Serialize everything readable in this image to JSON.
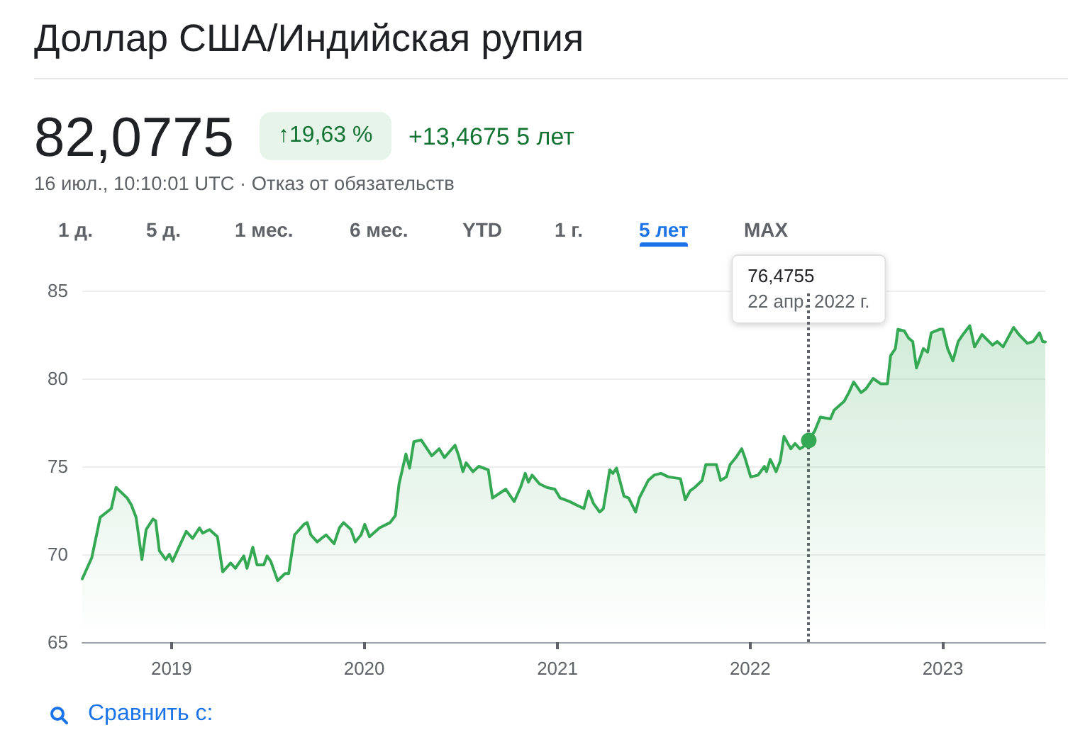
{
  "chart_data": {
    "type": "area",
    "title": "Доллар США/Индийская рупия",
    "annotations": [
      "82,0775",
      "↑19,63 %",
      "+13,4675 5 лет",
      "16 июл., 10:10:01 UTC · Отказ от обязательств",
      "1 д.",
      "5 д.",
      "1 мес.",
      "6 мес.",
      "YTD",
      "1 г.",
      "5 лет",
      "MAX",
      "76,4755",
      "Сравнить с:"
    ],
    "x": [
      "2018-07-16",
      "2018-08-03",
      "2018-08-19",
      "2018-09-09",
      "2018-09-18",
      "2018-10-09",
      "2018-10-17",
      "2018-10-26",
      "2018-11-06",
      "2018-11-14",
      "2018-11-27",
      "2018-12-02",
      "2018-12-09",
      "2018-12-21",
      "2018-12-28",
      "2019-01-03",
      "2019-01-15",
      "2019-01-29",
      "2019-02-10",
      "2019-02-23",
      "2019-03-01",
      "2019-03-14",
      "2019-03-29",
      "2019-04-08",
      "2019-04-23",
      "2019-05-02",
      "2019-05-18",
      "2019-05-24",
      "2019-06-04",
      "2019-06-12",
      "2019-06-25",
      "2019-07-01",
      "2019-07-08",
      "2019-07-21",
      "2019-08-04",
      "2019-08-11",
      "2019-08-22",
      "2019-09-09",
      "2019-09-15",
      "2019-09-22",
      "2019-10-04",
      "2019-10-12",
      "2019-10-21",
      "2019-11-05",
      "2019-11-15",
      "2019-11-23",
      "2019-12-07",
      "2019-12-15",
      "2019-12-26",
      "2020-01-02",
      "2020-01-11",
      "2020-01-30",
      "2020-02-19",
      "2020-02-29",
      "2020-03-07",
      "2020-03-20",
      "2020-03-27",
      "2020-04-04",
      "2020-04-18",
      "2020-05-08",
      "2020-05-22",
      "2020-06-01",
      "2020-06-21",
      "2020-06-28",
      "2020-07-06",
      "2020-07-12",
      "2020-07-25",
      "2020-08-05",
      "2020-08-23",
      "2020-08-31",
      "2020-09-25",
      "2020-10-11",
      "2020-10-23",
      "2020-11-01",
      "2020-11-07",
      "2020-11-14",
      "2020-11-28",
      "2020-12-12",
      "2020-12-27",
      "2021-01-06",
      "2021-01-24",
      "2021-02-06",
      "2021-02-20",
      "2021-03-01",
      "2021-03-10",
      "2021-03-22",
      "2021-03-29",
      "2021-04-10",
      "2021-04-16",
      "2021-04-23",
      "2021-05-07",
      "2021-05-16",
      "2021-05-29",
      "2021-06-05",
      "2021-06-22",
      "2021-07-03",
      "2021-07-16",
      "2021-07-30",
      "2021-08-22",
      "2021-08-31",
      "2021-09-09",
      "2021-09-18",
      "2021-10-02",
      "2021-10-09",
      "2021-10-29",
      "2021-11-06",
      "2021-11-17",
      "2021-11-24",
      "2021-12-05",
      "2021-12-16",
      "2021-12-22",
      "2022-01-02",
      "2022-01-16",
      "2022-01-28",
      "2022-02-01",
      "2022-02-08",
      "2022-02-13",
      "2022-02-19",
      "2022-02-27",
      "2022-03-06",
      "2022-03-19",
      "2022-03-27",
      "2022-04-05",
      "2022-04-11",
      "2022-04-22",
      "2022-05-03",
      "2022-05-14",
      "2022-06-02",
      "2022-06-09",
      "2022-06-28",
      "2022-07-07",
      "2022-07-16",
      "2022-07-30",
      "2022-08-08",
      "2022-08-22",
      "2022-09-05",
      "2022-09-18",
      "2022-09-24",
      "2022-10-03",
      "2022-10-08",
      "2022-10-20",
      "2022-10-28",
      "2022-11-05",
      "2022-11-12",
      "2022-11-25",
      "2022-12-03",
      "2022-12-10",
      "2022-12-26",
      "2023-01-01",
      "2023-01-10",
      "2023-01-20",
      "2023-01-30",
      "2023-02-08",
      "2023-02-21",
      "2023-03-02",
      "2023-03-16",
      "2023-04-05",
      "2023-04-14",
      "2023-04-25",
      "2023-05-15",
      "2023-05-25",
      "2023-06-10",
      "2023-06-21",
      "2023-07-03",
      "2023-07-09",
      "2023-07-14"
    ],
    "values": [
      68.6,
      69.8,
      72.1,
      72.6,
      73.8,
      73.2,
      72.8,
      72.1,
      69.7,
      71.4,
      72.0,
      71.9,
      70.2,
      69.7,
      70.0,
      69.6,
      70.4,
      71.3,
      70.9,
      71.5,
      71.2,
      71.4,
      71.0,
      69.0,
      69.5,
      69.2,
      69.9,
      69.2,
      70.4,
      69.4,
      69.4,
      69.9,
      69.6,
      68.5,
      68.9,
      68.9,
      71.1,
      71.7,
      71.8,
      71.1,
      70.7,
      70.9,
      71.1,
      70.6,
      71.5,
      71.8,
      71.4,
      70.7,
      71.1,
      71.7,
      71.0,
      71.5,
      71.8,
      72.2,
      74.0,
      75.7,
      74.9,
      76.4,
      76.5,
      75.6,
      76.0,
      75.5,
      76.2,
      75.6,
      74.7,
      75.2,
      74.7,
      75.0,
      74.8,
      73.2,
      73.7,
      73.0,
      73.8,
      74.6,
      74.1,
      74.5,
      74.0,
      73.8,
      73.7,
      73.2,
      73.0,
      72.8,
      72.6,
      73.6,
      72.9,
      72.4,
      72.6,
      74.8,
      74.6,
      74.9,
      73.3,
      73.2,
      72.4,
      73.2,
      74.2,
      74.5,
      74.6,
      74.4,
      74.3,
      73.1,
      73.6,
      73.8,
      74.2,
      75.1,
      75.1,
      74.2,
      74.4,
      75.1,
      75.5,
      76.0,
      75.5,
      74.4,
      74.5,
      75.0,
      74.7,
      75.4,
      75.1,
      74.7,
      75.3,
      76.7,
      76.0,
      76.3,
      76.0,
      76.1,
      76.4755,
      77.0,
      77.8,
      77.7,
      78.2,
      78.7,
      79.2,
      79.8,
      79.2,
      79.4,
      80.0,
      79.7,
      79.7,
      81.3,
      81.7,
      82.8,
      82.7,
      82.3,
      82.1,
      80.6,
      81.7,
      81.5,
      82.6,
      82.8,
      82.8,
      81.7,
      81.0,
      82.1,
      82.5,
      83.0,
      81.8,
      82.5,
      81.9,
      82.1,
      81.8,
      82.9,
      82.5,
      82.0,
      82.1,
      82.6,
      82.1,
      82.0775
    ],
    "color": "#34a853",
    "marker": "none",
    "line_style": "solid",
    "xlim": [
      "2018-07-16",
      "2023-07-14"
    ],
    "xticks": [
      "2019",
      "2020",
      "2021",
      "2022",
      "2023"
    ],
    "ylim": [
      65,
      85
    ],
    "yticks": [
      65,
      70,
      75,
      80,
      85
    ],
    "grid": "y",
    "ref_lines": [
      {
        "axis": "x",
        "value": "2022-04-22",
        "label": "22 апр. 2022 г.",
        "color": "#5f6368",
        "line_style": "dotted"
      }
    ]
  }
}
